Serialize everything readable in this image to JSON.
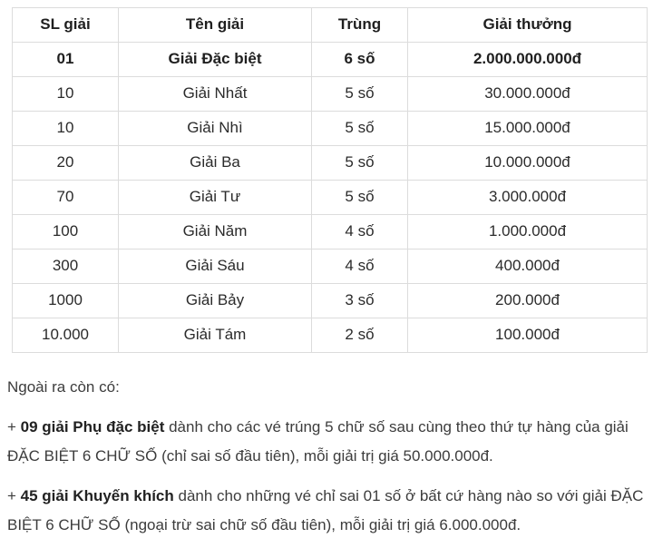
{
  "colors": {
    "background": "#ffffff",
    "table_border": "#dcdcdc",
    "table_text": "#2b2b2b",
    "bold_text": "#1f1f1f",
    "body_text": "#3c3c3c"
  },
  "table": {
    "headers": [
      "SL giải",
      "Tên giải",
      "Trùng",
      "Giải thưởng"
    ],
    "rows": [
      {
        "quantity": "01",
        "name": "Giải Đặc biệt",
        "match": "6 số",
        "prize": "2.000.000.000đ",
        "bold": true
      },
      {
        "quantity": "10",
        "name": "Giải Nhất",
        "match": "5 số",
        "prize": "30.000.000đ",
        "bold": false
      },
      {
        "quantity": "10",
        "name": "Giải Nhì",
        "match": "5 số",
        "prize": "15.000.000đ",
        "bold": false
      },
      {
        "quantity": "20",
        "name": "Giải Ba",
        "match": "5 số",
        "prize": "10.000.000đ",
        "bold": false
      },
      {
        "quantity": "70",
        "name": "Giải Tư",
        "match": "5 số",
        "prize": "3.000.000đ",
        "bold": false
      },
      {
        "quantity": "100",
        "name": "Giải Năm",
        "match": "4 số",
        "prize": "1.000.000đ",
        "bold": false
      },
      {
        "quantity": "300",
        "name": "Giải Sáu",
        "match": "4 số",
        "prize": "400.000đ",
        "bold": false
      },
      {
        "quantity": "1000",
        "name": "Giải Bảy",
        "match": "3 số",
        "prize": "200.000đ",
        "bold": false
      },
      {
        "quantity": "10.000",
        "name": "Giải Tám",
        "match": "2 số",
        "prize": "100.000đ",
        "bold": false
      }
    ]
  },
  "notes": {
    "intro": "Ngoài ra còn có:",
    "items": [
      {
        "prefix": "+ ",
        "bold": "09 giải Phụ đặc biệt",
        "text": " dành cho các vé trúng 5 chữ số sau cùng theo thứ tự hàng của giải ĐẶC BIỆT 6 CHỮ SỐ (chỉ sai số đầu tiên), mỗi giải trị giá 50.000.000đ."
      },
      {
        "prefix": "+ ",
        "bold": "45 giải Khuyến khích",
        "text": " dành cho những vé chỉ sai 01 số ở bất cứ hàng nào so với giải ĐẶC BIỆT 6 CHỮ SỐ (ngoại trừ sai chữ số đầu tiên), mỗi giải trị giá 6.000.000đ."
      }
    ]
  }
}
